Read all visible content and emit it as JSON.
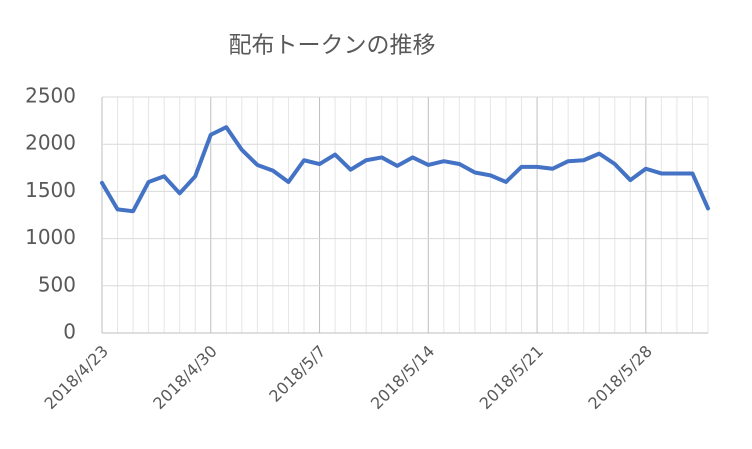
{
  "chart_data": {
    "type": "line",
    "title": "配布トークンの推移",
    "categories": [
      "2018/4/23",
      null,
      null,
      null,
      null,
      null,
      null,
      "2018/4/30",
      null,
      null,
      null,
      null,
      null,
      null,
      "2018/5/7",
      null,
      null,
      null,
      null,
      null,
      null,
      "2018/5/14",
      null,
      null,
      null,
      null,
      null,
      null,
      "2018/5/21",
      null,
      null,
      null,
      null,
      null,
      null,
      "2018/5/28",
      null,
      null,
      null,
      null
    ],
    "series": [
      {
        "name": "配布トークン",
        "color": "#4472c4",
        "values": [
          1590,
          1310,
          1290,
          1600,
          1660,
          1480,
          1660,
          2100,
          2180,
          1940,
          1780,
          1720,
          1600,
          1830,
          1790,
          1890,
          1730,
          1830,
          1860,
          1770,
          1860,
          1780,
          1820,
          1790,
          1700,
          1670,
          1600,
          1760,
          1760,
          1740,
          1820,
          1830,
          1900,
          1790,
          1620,
          1740,
          1690,
          1690,
          1690,
          1320
        ]
      }
    ],
    "ylim": [
      0,
      2500
    ],
    "yticks": [
      0,
      500,
      1000,
      1500,
      2000,
      2500
    ],
    "grid": true
  }
}
